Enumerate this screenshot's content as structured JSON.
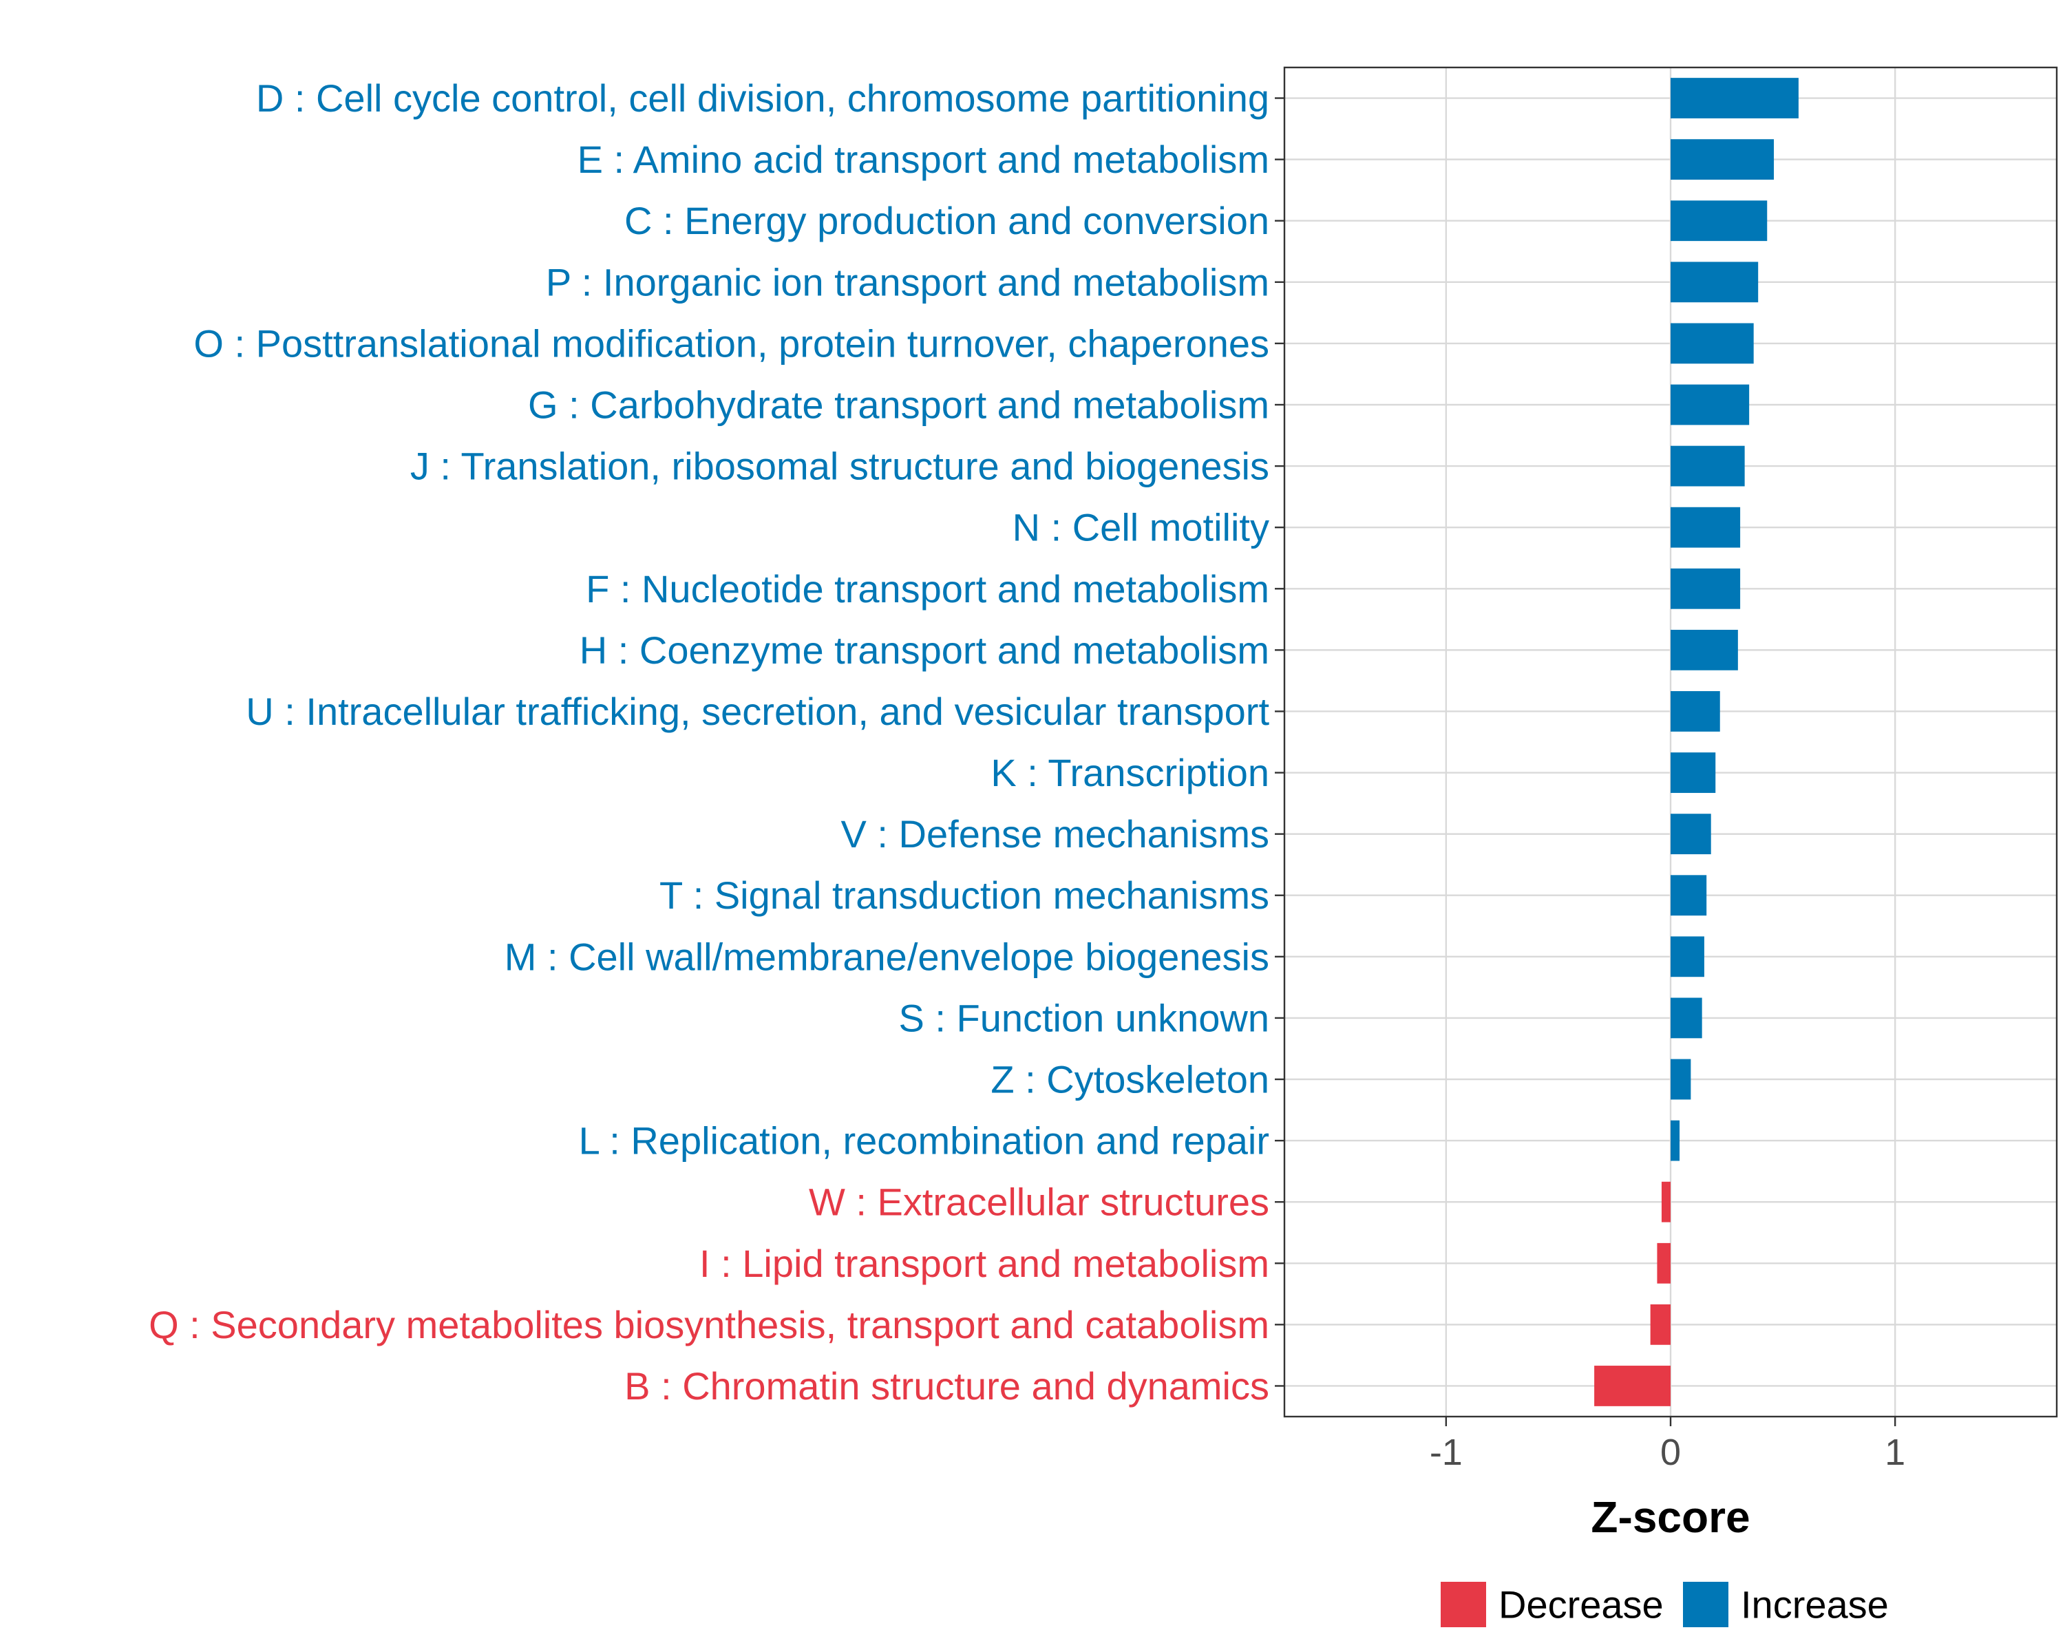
{
  "chart_data": {
    "type": "bar",
    "orientation": "horizontal",
    "title": "",
    "xlabel": "Z-score",
    "ylabel": "",
    "xlim": [
      -1.72,
      1.72
    ],
    "xticks": [
      -1,
      0,
      1
    ],
    "xtick_labels": [
      "-1",
      "0",
      "1"
    ],
    "grid": true,
    "legend": {
      "position": "bottom",
      "entries": [
        {
          "label": "Decrease",
          "color": "#E63946"
        },
        {
          "label": "Increase",
          "color": "#0077B6"
        }
      ]
    },
    "categories": [
      "D : Cell cycle control, cell division, chromosome partitioning",
      "E : Amino acid transport and metabolism",
      "C : Energy production and conversion",
      "P : Inorganic ion transport and metabolism",
      "O : Posttranslational modification, protein turnover, chaperones",
      "G : Carbohydrate transport and metabolism",
      "J : Translation, ribosomal structure and biogenesis",
      "N : Cell motility",
      "F : Nucleotide transport and metabolism",
      "H : Coenzyme transport and metabolism",
      "U : Intracellular trafficking, secretion, and vesicular transport",
      "K : Transcription",
      "V : Defense mechanisms",
      "T : Signal transduction mechanisms",
      "M : Cell wall/membrane/envelope biogenesis",
      "S : Function unknown",
      "Z : Cytoskeleton",
      "L : Replication, recombination and repair",
      "W : Extracellular structures",
      "I : Lipid transport and metabolism",
      "Q : Secondary metabolites biosynthesis, transport and catabolism",
      "B : Chromatin structure and dynamics"
    ],
    "values": [
      0.57,
      0.46,
      0.43,
      0.39,
      0.37,
      0.35,
      0.33,
      0.31,
      0.31,
      0.3,
      0.22,
      0.2,
      0.18,
      0.16,
      0.15,
      0.14,
      0.09,
      0.04,
      -0.04,
      -0.06,
      -0.09,
      -0.34
    ],
    "colors": {
      "Decrease": "#E63946",
      "Increase": "#0077B6"
    }
  }
}
